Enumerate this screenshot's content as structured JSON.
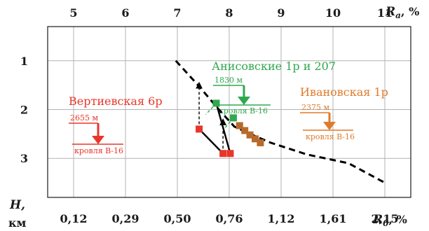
{
  "chart_data": {
    "type": "scatter",
    "y_axis": {
      "title": "H,",
      "unit": "км",
      "ticks": [
        1,
        2,
        3
      ],
      "ylim": [
        0.3,
        3.8
      ],
      "inverted": true
    },
    "top_axis": {
      "title": "R",
      "subscript": "a",
      "unit": ", %",
      "ticks": [
        5,
        6,
        7,
        8,
        9,
        10,
        11
      ],
      "range": [
        4.5,
        11.5
      ]
    },
    "bottom_axis": {
      "title": "R",
      "subscript": "0",
      "unit": ", %",
      "tick_labels": [
        "0,12",
        "0,29",
        "0,50",
        "0,76",
        "1,12",
        "1,61",
        "2,15"
      ]
    },
    "grid": true,
    "trend_line": {
      "style": "dashed",
      "color": "#000000",
      "points": [
        [
          6.97,
          1.0
        ],
        [
          7.4,
          1.5
        ],
        [
          7.8,
          2.0
        ],
        [
          8.1,
          2.35
        ],
        [
          8.45,
          2.52
        ],
        [
          8.8,
          2.68
        ],
        [
          9.5,
          2.92
        ],
        [
          10.3,
          3.1
        ],
        [
          11.0,
          3.5
        ]
      ]
    },
    "series": [
      {
        "color": "#e8362a",
        "points": [
          [
            7.42,
            2.4
          ],
          [
            7.88,
            2.9
          ],
          [
            8.02,
            2.9
          ]
        ]
      },
      {
        "color": "#2fa84f",
        "points": [
          [
            7.75,
            1.87
          ],
          [
            8.08,
            2.17
          ]
        ]
      },
      {
        "color": "#b86a2a",
        "points": [
          [
            8.2,
            2.33
          ],
          [
            8.3,
            2.43
          ],
          [
            8.4,
            2.52
          ],
          [
            8.5,
            2.6
          ],
          [
            8.6,
            2.68
          ]
        ]
      }
    ],
    "connectors": [
      {
        "from": [
          7.42,
          2.4
        ],
        "to": [
          7.88,
          2.9
        ],
        "style": "solid",
        "color": "#000000"
      },
      {
        "from": [
          7.75,
          1.87
        ],
        "to": [
          8.02,
          2.9
        ],
        "style": "solid",
        "color": "#000000"
      },
      {
        "from": [
          7.42,
          2.4
        ],
        "to": [
          7.42,
          1.5
        ],
        "style": "dashed-arrow",
        "color": "#000000"
      },
      {
        "from": [
          7.88,
          2.9
        ],
        "to": [
          7.88,
          2.25
        ],
        "style": "dashed-arrow",
        "color": "#000000"
      },
      {
        "from": [
          7.75,
          1.87
        ],
        "to": [
          7.55,
          2.1
        ],
        "style": "dashed",
        "color": "#2fa84f"
      },
      {
        "from": [
          8.08,
          2.17
        ],
        "to": [
          7.9,
          2.4
        ],
        "style": "dashed",
        "color": "#2fa84f"
      }
    ],
    "annotations": [
      {
        "name": "Вертиевская 6р",
        "depth_label": "2655 м",
        "horizon_label": "кровля В-16",
        "color": "#e8362a"
      },
      {
        "name": "Анисовские 1р и 207",
        "depth_label": "1830 м",
        "horizon_label": "кровля В-16",
        "color": "#2fa84f"
      },
      {
        "name": "Ивановская 1р",
        "depth_label": "2375 м",
        "horizon_label": "кровля В-16",
        "color": "#e07a2a"
      }
    ]
  }
}
